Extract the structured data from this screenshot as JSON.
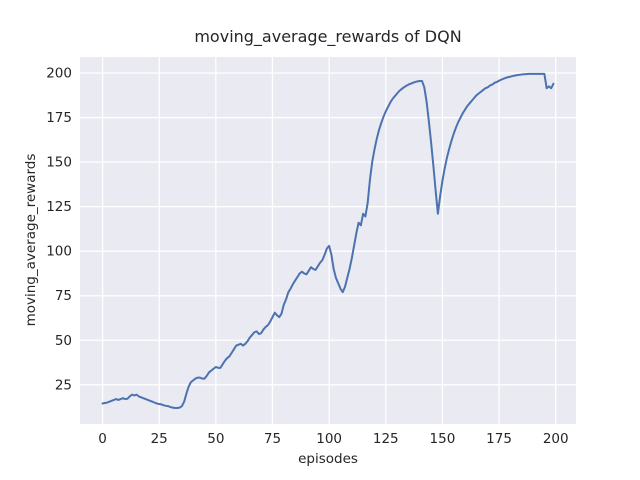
{
  "chart_data": {
    "type": "line",
    "title": "moving_average_rewards of DQN",
    "xlabel": "episodes",
    "ylabel": "moving_average_rewards",
    "x_ticks": [
      0,
      25,
      50,
      75,
      100,
      125,
      150,
      175,
      200
    ],
    "y_ticks": [
      25,
      50,
      75,
      100,
      125,
      150,
      175,
      200
    ],
    "xlim": [
      -9.95,
      208.95
    ],
    "ylim": [
      3,
      209
    ],
    "grid": true,
    "legend_position": "none",
    "style": {
      "figure_background": "#ffffff",
      "axes_background": "#eaeaf2",
      "grid_color": "#ffffff",
      "line_color": "#4c72b0",
      "text_color": "#262626",
      "line_width": 2
    },
    "series": [
      {
        "name": "moving_average_rewards",
        "x": [
          0,
          1,
          2,
          3,
          4,
          5,
          6,
          7,
          8,
          9,
          10,
          11,
          12,
          13,
          14,
          15,
          16,
          17,
          18,
          19,
          20,
          21,
          22,
          23,
          24,
          25,
          26,
          27,
          28,
          29,
          30,
          31,
          32,
          33,
          34,
          35,
          36,
          37,
          38,
          39,
          40,
          41,
          42,
          43,
          44,
          45,
          46,
          47,
          48,
          49,
          50,
          51,
          52,
          53,
          54,
          55,
          56,
          57,
          58,
          59,
          60,
          61,
          62,
          63,
          64,
          65,
          66,
          67,
          68,
          69,
          70,
          71,
          72,
          73,
          74,
          75,
          76,
          77,
          78,
          79,
          80,
          81,
          82,
          83,
          84,
          85,
          86,
          87,
          88,
          89,
          90,
          91,
          92,
          93,
          94,
          95,
          96,
          97,
          98,
          99,
          100,
          101,
          102,
          103,
          104,
          105,
          106,
          107,
          108,
          109,
          110,
          111,
          112,
          113,
          114,
          115,
          116,
          117,
          118,
          119,
          120,
          121,
          122,
          123,
          124,
          125,
          126,
          127,
          128,
          129,
          130,
          131,
          132,
          133,
          134,
          135,
          136,
          137,
          138,
          139,
          140,
          141,
          142,
          143,
          144,
          145,
          146,
          147,
          148,
          149,
          150,
          151,
          152,
          153,
          154,
          155,
          156,
          157,
          158,
          159,
          160,
          161,
          162,
          163,
          164,
          165,
          166,
          167,
          168,
          169,
          170,
          171,
          172,
          173,
          174,
          175,
          176,
          177,
          178,
          179,
          180,
          181,
          182,
          183,
          184,
          185,
          186,
          187,
          188,
          189,
          190,
          191,
          192,
          193,
          194,
          195,
          196,
          197,
          198,
          199
        ],
        "y": [
          14.5,
          14.8,
          15,
          15.5,
          16,
          16.5,
          17,
          16.5,
          17,
          17.5,
          17,
          17.2,
          18.5,
          19.5,
          19,
          19.5,
          18.5,
          18,
          17.5,
          17,
          16.5,
          16,
          15.5,
          15,
          14.5,
          14.2,
          14,
          13.5,
          13.2,
          13,
          12.5,
          12.2,
          12,
          12,
          12.2,
          13,
          15.5,
          20,
          24,
          26.5,
          27.5,
          28.5,
          29,
          29,
          28.5,
          28.5,
          30,
          32,
          33,
          34,
          35,
          34.5,
          34.5,
          36.5,
          38.5,
          40,
          41,
          43,
          45,
          47,
          47.5,
          48,
          47,
          48,
          49.5,
          51.5,
          53,
          54.5,
          55,
          53.5,
          54,
          56,
          57.5,
          58.5,
          60.5,
          63,
          65.5,
          64,
          63,
          65,
          70,
          73,
          77,
          79,
          81.5,
          83.5,
          85.5,
          87.5,
          88.5,
          87.5,
          87,
          89,
          91,
          90,
          89.5,
          91.5,
          93.5,
          95,
          98,
          101.5,
          103,
          98,
          90,
          85,
          82,
          79,
          77,
          80,
          85,
          90,
          96,
          103,
          110,
          116,
          114.5,
          121,
          119.5,
          127,
          140,
          150,
          157,
          163,
          168,
          172,
          175.5,
          178.5,
          181,
          183.5,
          185.5,
          187,
          188.5,
          190,
          191,
          192,
          192.8,
          193.5,
          194,
          194.5,
          195,
          195.3,
          195.5,
          195.5,
          192,
          184,
          173,
          161,
          148,
          134,
          121,
          131,
          139.5,
          146.5,
          152.5,
          157.5,
          162,
          166,
          169.5,
          172.5,
          175,
          177.5,
          179.5,
          181.5,
          183,
          184.5,
          186,
          187.5,
          188.5,
          189.5,
          190.5,
          191.5,
          192,
          193,
          193.5,
          194.5,
          195,
          195.7,
          196.3,
          196.8,
          197.3,
          197.7,
          198,
          198.3,
          198.6,
          198.8,
          199,
          199.2,
          199.3,
          199.4,
          199.5,
          199.5,
          199.5,
          199.5,
          199.5,
          199.5,
          199.5,
          199.5,
          191.5,
          192.5,
          191.5,
          194
        ]
      }
    ]
  }
}
